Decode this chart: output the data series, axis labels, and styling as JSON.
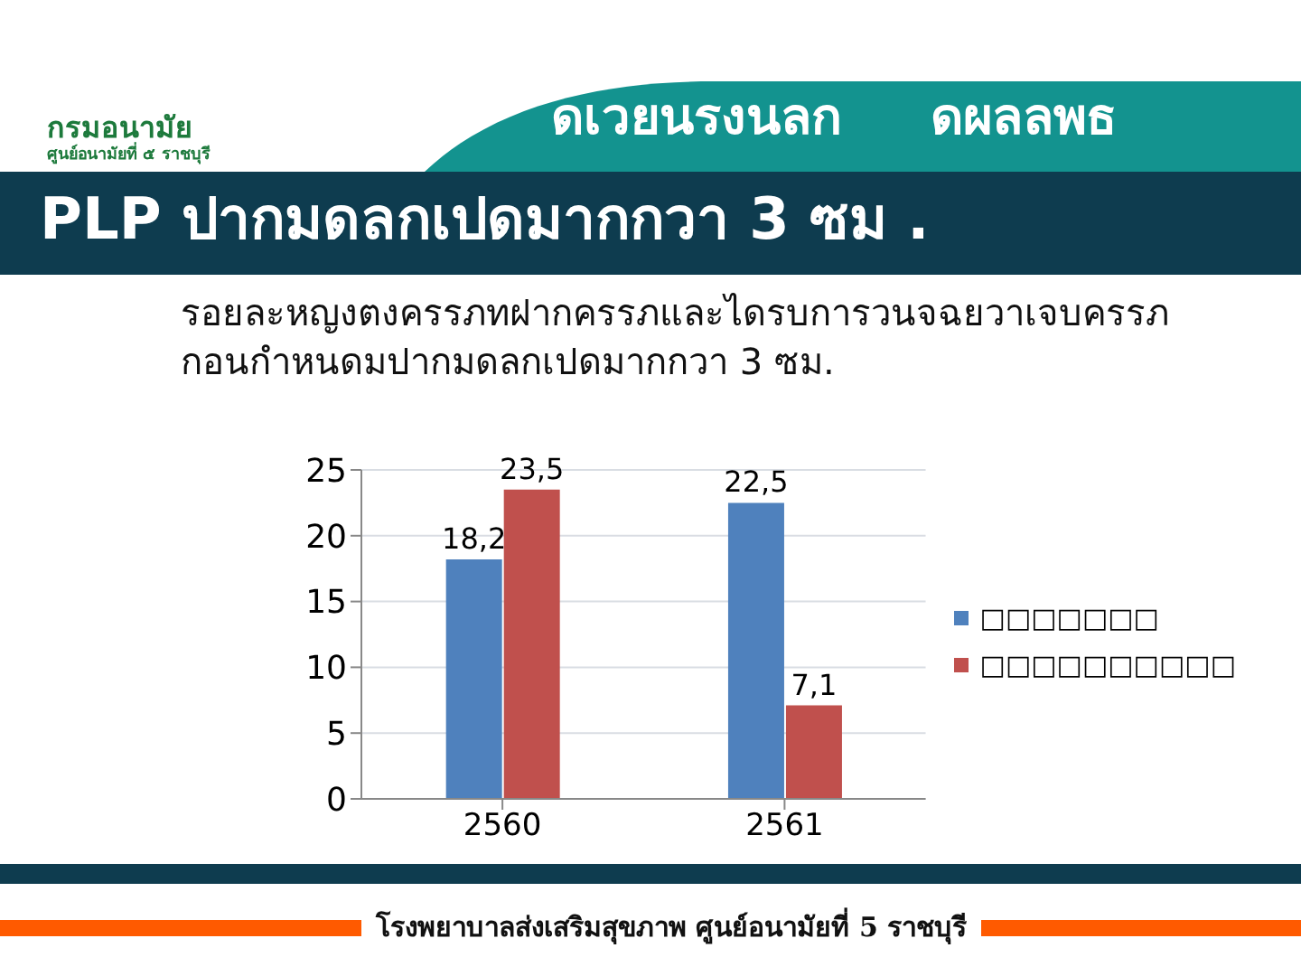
{
  "chart_data": {
    "type": "bar",
    "title": "PLP ปากมดลกเปดมากกวา 3 ซม .",
    "subtitle": "รอยละหญงตงครรภทฝากครรภและไดรบการวนจฉยวาเจบครรภกอนกำหนดมปากมดลกเปดมากกวา 3 ซม.",
    "categories": [
      "2560",
      "2561"
    ],
    "series": [
      {
        "name": "□□□□□□□",
        "color": "#4f81bd",
        "values": [
          18.2,
          22.5
        ],
        "value_labels": [
          "18,2",
          "22,5"
        ]
      },
      {
        "name": "□□□□□□□□□□",
        "color": "#c0504d",
        "values": [
          23.5,
          7.1
        ],
        "value_labels": [
          "23,5",
          "7,1"
        ]
      }
    ],
    "ylim": [
      0,
      25
    ],
    "yticks": [
      0,
      5,
      10,
      15,
      20,
      25
    ],
    "grid": "y",
    "legend": "right",
    "annotations": [
      "ดเวยนรงนลก",
      "ดผลลพธ",
      "กรมอนามัย",
      "ศูนย์อนามัยที่ ๕ ราชบุรี",
      "โรงพยาบาลส่งเสริมสุขภาพ ศูนย์อนามัยที่ 5 ราชบุรี"
    ]
  }
}
